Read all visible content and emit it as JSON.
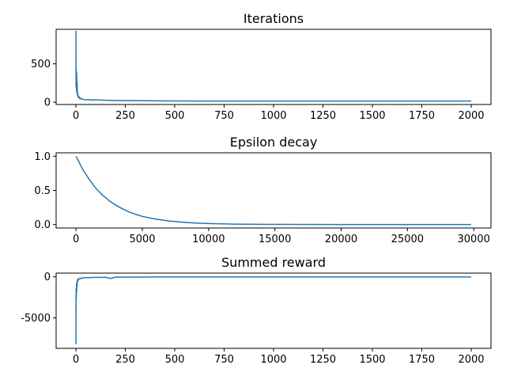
{
  "chart_data": [
    {
      "type": "line",
      "title": "Iterations",
      "xlabel": "",
      "ylabel": "",
      "xlim": [
        -100,
        2100
      ],
      "ylim": [
        -30,
        950
      ],
      "xticks": [
        0,
        250,
        500,
        750,
        1000,
        1250,
        1500,
        1750,
        2000
      ],
      "yticks": [
        0,
        500
      ],
      "color": "#1f77b4",
      "grid": false,
      "series": [
        {
          "x": [
            0,
            1,
            2,
            3,
            4,
            5,
            6,
            8,
            10,
            12,
            15,
            20,
            25,
            30,
            40,
            50,
            60,
            80,
            100,
            150,
            200,
            250,
            300,
            400,
            500,
            750,
            1000,
            1250,
            1500,
            1750,
            2000
          ],
          "values": [
            930,
            200,
            420,
            150,
            380,
            120,
            260,
            90,
            110,
            60,
            75,
            45,
            55,
            40,
            35,
            30,
            35,
            28,
            30,
            25,
            22,
            20,
            20,
            18,
            16,
            15,
            15,
            15,
            15,
            15,
            15
          ]
        }
      ]
    },
    {
      "type": "line",
      "title": "Epsilon decay",
      "xlabel": "",
      "ylabel": "",
      "xlim": [
        -1500,
        31300
      ],
      "ylim": [
        -0.05,
        1.05
      ],
      "xticks": [
        0,
        5000,
        10000,
        15000,
        20000,
        25000,
        30000
      ],
      "yticks": [
        0.0,
        0.5,
        1.0
      ],
      "ytick_labels": [
        "0.0",
        "0.5",
        "1.0"
      ],
      "color": "#1f77b4",
      "grid": false,
      "series": [
        {
          "x": [
            0,
            500,
            1000,
            1500,
            2000,
            2500,
            3000,
            3500,
            4000,
            4500,
            5000,
            6000,
            7000,
            8000,
            9000,
            10000,
            12000,
            14000,
            17000,
            20000,
            25000,
            29800
          ],
          "values": [
            1.0,
            0.81,
            0.66,
            0.53,
            0.43,
            0.35,
            0.285,
            0.23,
            0.185,
            0.15,
            0.12,
            0.08,
            0.053,
            0.035,
            0.023,
            0.015,
            0.007,
            0.004,
            0.002,
            0.001,
            0.0005,
            0.0003
          ]
        }
      ]
    },
    {
      "type": "line",
      "title": "Summed reward",
      "xlabel": "",
      "ylabel": "",
      "xlim": [
        -100,
        2100
      ],
      "ylim": [
        -8700,
        450
      ],
      "xticks": [
        0,
        250,
        500,
        750,
        1000,
        1250,
        1500,
        1750,
        2000
      ],
      "yticks": [
        -5000,
        0
      ],
      "color": "#1f77b4",
      "grid": false,
      "series": [
        {
          "x": [
            0,
            1,
            2,
            3,
            4,
            5,
            6,
            8,
            10,
            12,
            15,
            20,
            25,
            30,
            40,
            50,
            60,
            80,
            100,
            150,
            175,
            200,
            250,
            300,
            400,
            500,
            750,
            1000,
            1250,
            1500,
            1750,
            2000
          ],
          "values": [
            -8200,
            -1500,
            -2600,
            -900,
            -1700,
            -600,
            -1100,
            -350,
            -500,
            -250,
            -300,
            -180,
            -220,
            -150,
            -120,
            -100,
            -110,
            -80,
            -70,
            -60,
            -200,
            -40,
            -35,
            -30,
            -25,
            -20,
            -15,
            -15,
            -15,
            -15,
            -15,
            -15
          ]
        }
      ]
    }
  ]
}
